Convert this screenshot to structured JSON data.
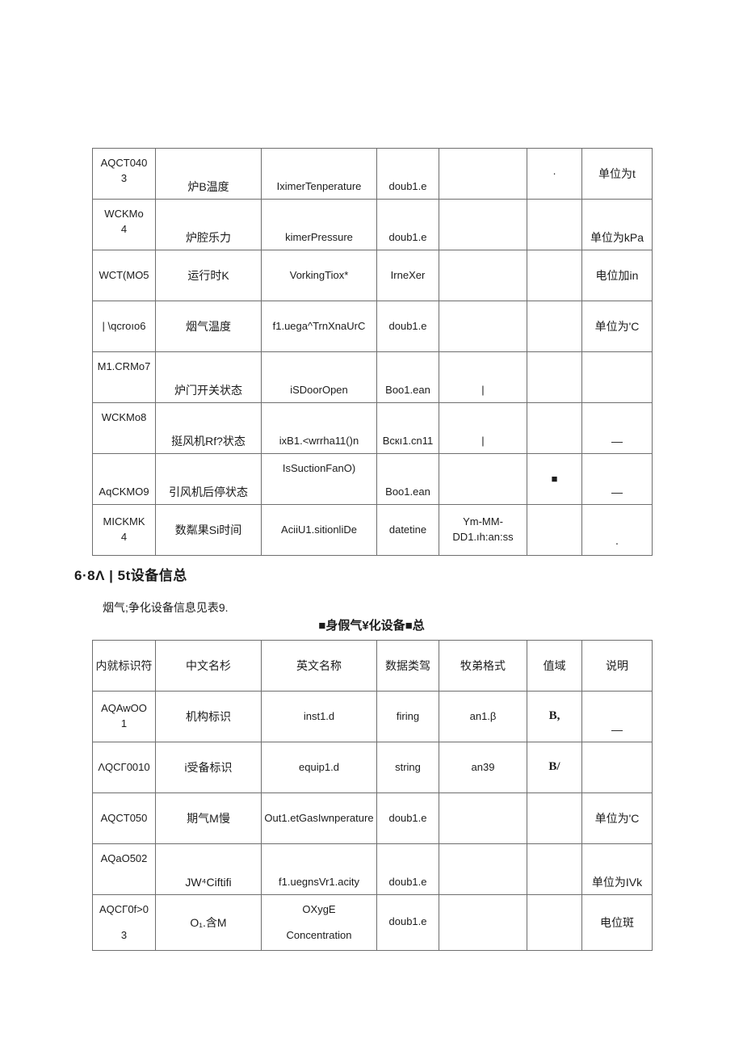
{
  "page": {
    "background_color": "#ffffff",
    "text_color": "#1c1c1c",
    "table_border_color": "#6e6e6e"
  },
  "section": {
    "heading": "6·8Λ | 5t设备信总",
    "paragraph": "烟气;争化设备信息见表9.",
    "table2_caption": "■身假气¥化设备■总"
  },
  "table1": {
    "rows": [
      {
        "cells": [
          {
            "t": "AQCT040\n3",
            "va": "t"
          },
          {
            "t": "炉B温度",
            "va": "b"
          },
          {
            "t": "IximerTenperature",
            "va": "b"
          },
          {
            "t": "doub1.e",
            "va": "b"
          },
          {
            "t": ""
          },
          {
            "t": "·"
          },
          {
            "t": "单位为t"
          }
        ]
      },
      {
        "cells": [
          {
            "t": "WCKMo\n4",
            "va": "t"
          },
          {
            "t": "炉腔乐力",
            "va": "b"
          },
          {
            "t": "kimerPressure",
            "va": "b"
          },
          {
            "t": "doub1.e",
            "va": "b"
          },
          {
            "t": ""
          },
          {
            "t": ""
          },
          {
            "t": "单位为kPa",
            "va": "b"
          }
        ]
      },
      {
        "cells": [
          {
            "t": "WCT(MO5"
          },
          {
            "t": "运行时K"
          },
          {
            "t": "VorkingTiox*"
          },
          {
            "t": "IrneXer"
          },
          {
            "t": ""
          },
          {
            "t": ""
          },
          {
            "t": "电位加in"
          }
        ]
      },
      {
        "cells": [
          {
            "t": "| \\qcroıo6"
          },
          {
            "t": "烟气温度"
          },
          {
            "t": "f1.uega^TrnXnaUrC"
          },
          {
            "t": "doub1.e"
          },
          {
            "t": ""
          },
          {
            "t": ""
          },
          {
            "t": "单位为'C"
          }
        ]
      },
      {
        "cells": [
          {
            "t": "M1.CRMo7",
            "va": "t"
          },
          {
            "t": "炉门开关状态",
            "va": "b"
          },
          {
            "t": "iSDoorOpen",
            "va": "b"
          },
          {
            "t": "Boo1.ean",
            "va": "b"
          },
          {
            "t": "|",
            "va": "b"
          },
          {
            "t": ""
          },
          {
            "t": ""
          }
        ]
      },
      {
        "cells": [
          {
            "t": "WCKMo8",
            "va": "t"
          },
          {
            "t": "挺风机Rf?状态",
            "va": "b"
          },
          {
            "t": "ixB1.<wrrha11()n",
            "va": "b"
          },
          {
            "t": "Bcкı1.cn11",
            "va": "b"
          },
          {
            "t": "|",
            "va": "b"
          },
          {
            "t": ""
          },
          {
            "t": "—",
            "va": "b"
          }
        ]
      },
      {
        "cells": [
          {
            "t": "AqCKMO9",
            "va": "b"
          },
          {
            "t": "引风机后停状态",
            "va": "b"
          },
          {
            "t": "IsSuctionFanO)",
            "va": "t"
          },
          {
            "t": "Boo1.ean",
            "va": "b"
          },
          {
            "t": ""
          },
          {
            "t": "■"
          },
          {
            "t": "—",
            "va": "b"
          }
        ]
      },
      {
        "cells": [
          {
            "t": "MICKMK\n4"
          },
          {
            "t": "数粼果Si时间"
          },
          {
            "t": "AciiU1.sitionliDe"
          },
          {
            "t": "datetine"
          },
          {
            "t": "Ym-MM-\nDD1.ıh:an:ss"
          },
          {
            "t": ""
          },
          {
            "t": "·",
            "va": "b"
          }
        ]
      }
    ]
  },
  "table2": {
    "headers": [
      "内就标识符",
      "中文名杉",
      "英文名称",
      "数据类驾",
      "牧弟格式",
      "值域",
      "说明"
    ],
    "rows": [
      {
        "cells": [
          {
            "t": "AQAwOO\n1"
          },
          {
            "t": "机构标识"
          },
          {
            "t": "inst1.d"
          },
          {
            "t": "firing"
          },
          {
            "t": "an1.β"
          },
          {
            "t": "B,",
            "b": true
          },
          {
            "t": "—",
            "va": "b"
          }
        ]
      },
      {
        "cells": [
          {
            "t": "ΛQCΓ0010"
          },
          {
            "t": "i受备标识"
          },
          {
            "t": "equip1.d"
          },
          {
            "t": "string"
          },
          {
            "t": "an39"
          },
          {
            "t": "B/",
            "b": true
          },
          {
            "t": ""
          }
        ]
      },
      {
        "cells": [
          {
            "t": "AQCT050"
          },
          {
            "t": "期气M慢"
          },
          {
            "t": "Out1.etGasIwnperature"
          },
          {
            "t": "doub1.e"
          },
          {
            "t": ""
          },
          {
            "t": ""
          },
          {
            "t": "单位为'C"
          }
        ]
      },
      {
        "cells": [
          {
            "t": "AQaO502",
            "va": "t"
          },
          {
            "t": "JW⁴Ciftifi",
            "va": "b"
          },
          {
            "t": "f1.uegnsVr1.acity",
            "va": "b"
          },
          {
            "t": "doub1.e",
            "va": "b"
          },
          {
            "t": ""
          },
          {
            "t": ""
          },
          {
            "t": "单位为IVk",
            "va": "b"
          }
        ]
      },
      {
        "cells": [
          {
            "t": "AQCΓ0f>0\n3",
            "gap": true
          },
          {
            "t": "O₁.含M"
          },
          {
            "t": "OXygE\nConcentration",
            "gap": true
          },
          {
            "t": "doub1.e"
          },
          {
            "t": ""
          },
          {
            "t": ""
          },
          {
            "t": "电位斑"
          }
        ]
      }
    ]
  }
}
